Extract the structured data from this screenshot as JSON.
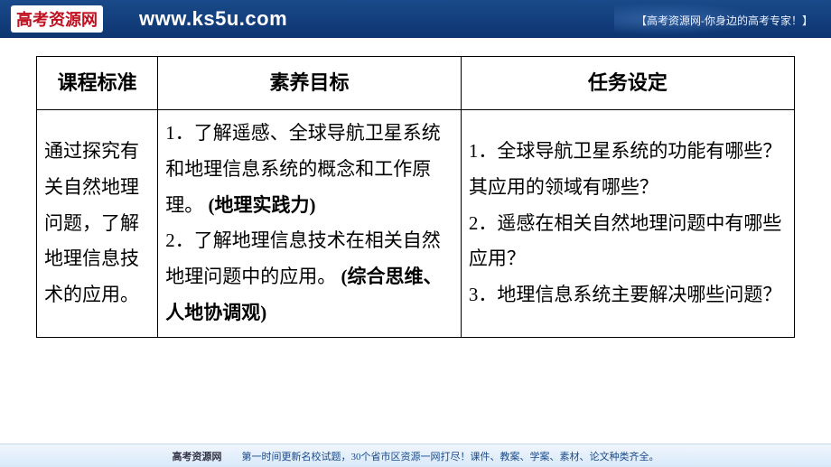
{
  "banner": {
    "logo_text": "高考资源网",
    "url_text": "www.ks5u.com",
    "tagline": "【高考资源网-你身边的高考专家！】",
    "logo_bg": "#ffffff",
    "logo_color": "#c01020",
    "bg_gradient_start": "#1a4a8a",
    "bg_gradient_end": "#0d3570"
  },
  "table": {
    "headers": {
      "col1": "课程标准",
      "col2": "素养目标",
      "col3": "任务设定"
    },
    "cells": {
      "col1": "通过探究有关自然地理问题，了解地理信息技术的应用。",
      "col2_p1_prefix": "1．了解遥感、全球导航卫星系统和地理信息系统的概念和工作原理。",
      "col2_p1_bold": "(地理实践力)",
      "col2_p2_prefix": "2．了解地理信息技术在相关自然地理问题中的应用。",
      "col2_p2_bold": "(综合思维、人地协调观)",
      "col3_p1": "1．全球导航卫星系统的功能有哪些？其应用的领域有哪些？",
      "col3_p2": "2．遥感在相关自然地理问题中有哪些应用？",
      "col3_p3": "3．地理信息系统主要解决哪些问题？"
    },
    "styling": {
      "border_color": "#000000",
      "border_width": 1.5,
      "header_fontsize": 22,
      "cell_fontsize": 21,
      "line_height": 1.9,
      "col_widths_pct": [
        16,
        40,
        44
      ]
    }
  },
  "footer": {
    "prefix": "高考资源网",
    "text": "第一时间更新名校试题，30个省市区资源一网打尽！课件、教案、学案、素材、论文种类齐全。"
  }
}
